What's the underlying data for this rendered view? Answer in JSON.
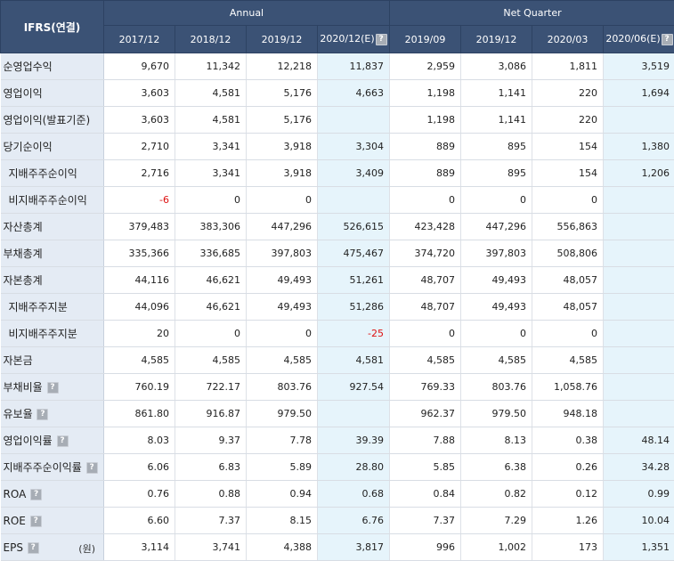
{
  "header": {
    "ifrs_label": "IFRS(연결)",
    "group_annual": "Annual",
    "group_quarter": "Net Quarter",
    "help_glyph": "?",
    "periods": [
      "2017/12",
      "2018/12",
      "2019/12",
      "2020/12(E)",
      "2019/09",
      "2019/12",
      "2020/03",
      "2020/06(E)"
    ]
  },
  "colors": {
    "header_bg": "#3b5275",
    "label_bg": "#e4ebf4",
    "estimate_bg": "#e6f4fb",
    "negative": "#dd1111"
  },
  "rows": [
    {
      "label": "순영업수익",
      "values": [
        "9,670",
        "11,342",
        "12,218",
        "11,837",
        "2,959",
        "3,086",
        "1,811",
        "3,519"
      ]
    },
    {
      "label": "영업이익",
      "values": [
        "3,603",
        "4,581",
        "5,176",
        "4,663",
        "1,198",
        "1,141",
        "220",
        "1,694"
      ]
    },
    {
      "label": "영업이익(발표기준)",
      "values": [
        "3,603",
        "4,581",
        "5,176",
        "",
        "1,198",
        "1,141",
        "220",
        ""
      ]
    },
    {
      "label": "당기순이익",
      "values": [
        "2,710",
        "3,341",
        "3,918",
        "3,304",
        "889",
        "895",
        "154",
        "1,380"
      ]
    },
    {
      "label": "지배주주순이익",
      "indent": true,
      "values": [
        "2,716",
        "3,341",
        "3,918",
        "3,409",
        "889",
        "895",
        "154",
        "1,206"
      ]
    },
    {
      "label": "비지배주주순이익",
      "indent": true,
      "values": [
        "-6",
        "0",
        "0",
        "",
        "0",
        "0",
        "0",
        ""
      ]
    },
    {
      "label": "자산총계",
      "values": [
        "379,483",
        "383,306",
        "447,296",
        "526,615",
        "423,428",
        "447,296",
        "556,863",
        ""
      ]
    },
    {
      "label": "부채총계",
      "values": [
        "335,366",
        "336,685",
        "397,803",
        "475,467",
        "374,720",
        "397,803",
        "508,806",
        ""
      ]
    },
    {
      "label": "자본총계",
      "values": [
        "44,116",
        "46,621",
        "49,493",
        "51,261",
        "48,707",
        "49,493",
        "48,057",
        ""
      ]
    },
    {
      "label": "지배주주지분",
      "indent": true,
      "values": [
        "44,096",
        "46,621",
        "49,493",
        "51,286",
        "48,707",
        "49,493",
        "48,057",
        ""
      ]
    },
    {
      "label": "비지배주주지분",
      "indent": true,
      "values": [
        "20",
        "0",
        "0",
        "-25",
        "0",
        "0",
        "0",
        ""
      ]
    },
    {
      "label": "자본금",
      "values": [
        "4,585",
        "4,585",
        "4,585",
        "4,581",
        "4,585",
        "4,585",
        "4,585",
        ""
      ]
    },
    {
      "label": "부채비율",
      "help": true,
      "values": [
        "760.19",
        "722.17",
        "803.76",
        "927.54",
        "769.33",
        "803.76",
        "1,058.76",
        ""
      ]
    },
    {
      "label": "유보율",
      "help": true,
      "values": [
        "861.80",
        "916.87",
        "979.50",
        "",
        "962.37",
        "979.50",
        "948.18",
        ""
      ]
    },
    {
      "label": "영업이익률",
      "help": true,
      "values": [
        "8.03",
        "9.37",
        "7.78",
        "39.39",
        "7.88",
        "8.13",
        "0.38",
        "48.14"
      ]
    },
    {
      "label": "지배주주순이익률",
      "help": true,
      "values": [
        "6.06",
        "6.83",
        "5.89",
        "28.80",
        "5.85",
        "6.38",
        "0.26",
        "34.28"
      ]
    },
    {
      "label": "ROA",
      "help": true,
      "values": [
        "0.76",
        "0.88",
        "0.94",
        "0.68",
        "0.84",
        "0.82",
        "0.12",
        "0.99"
      ]
    },
    {
      "label": "ROE",
      "help": true,
      "values": [
        "6.60",
        "7.37",
        "8.15",
        "6.76",
        "7.37",
        "7.29",
        "1.26",
        "10.04"
      ]
    },
    {
      "label": "EPS",
      "help": true,
      "unit": "(원)",
      "values": [
        "3,114",
        "3,741",
        "4,388",
        "3,817",
        "996",
        "1,002",
        "173",
        "1,351"
      ]
    }
  ]
}
